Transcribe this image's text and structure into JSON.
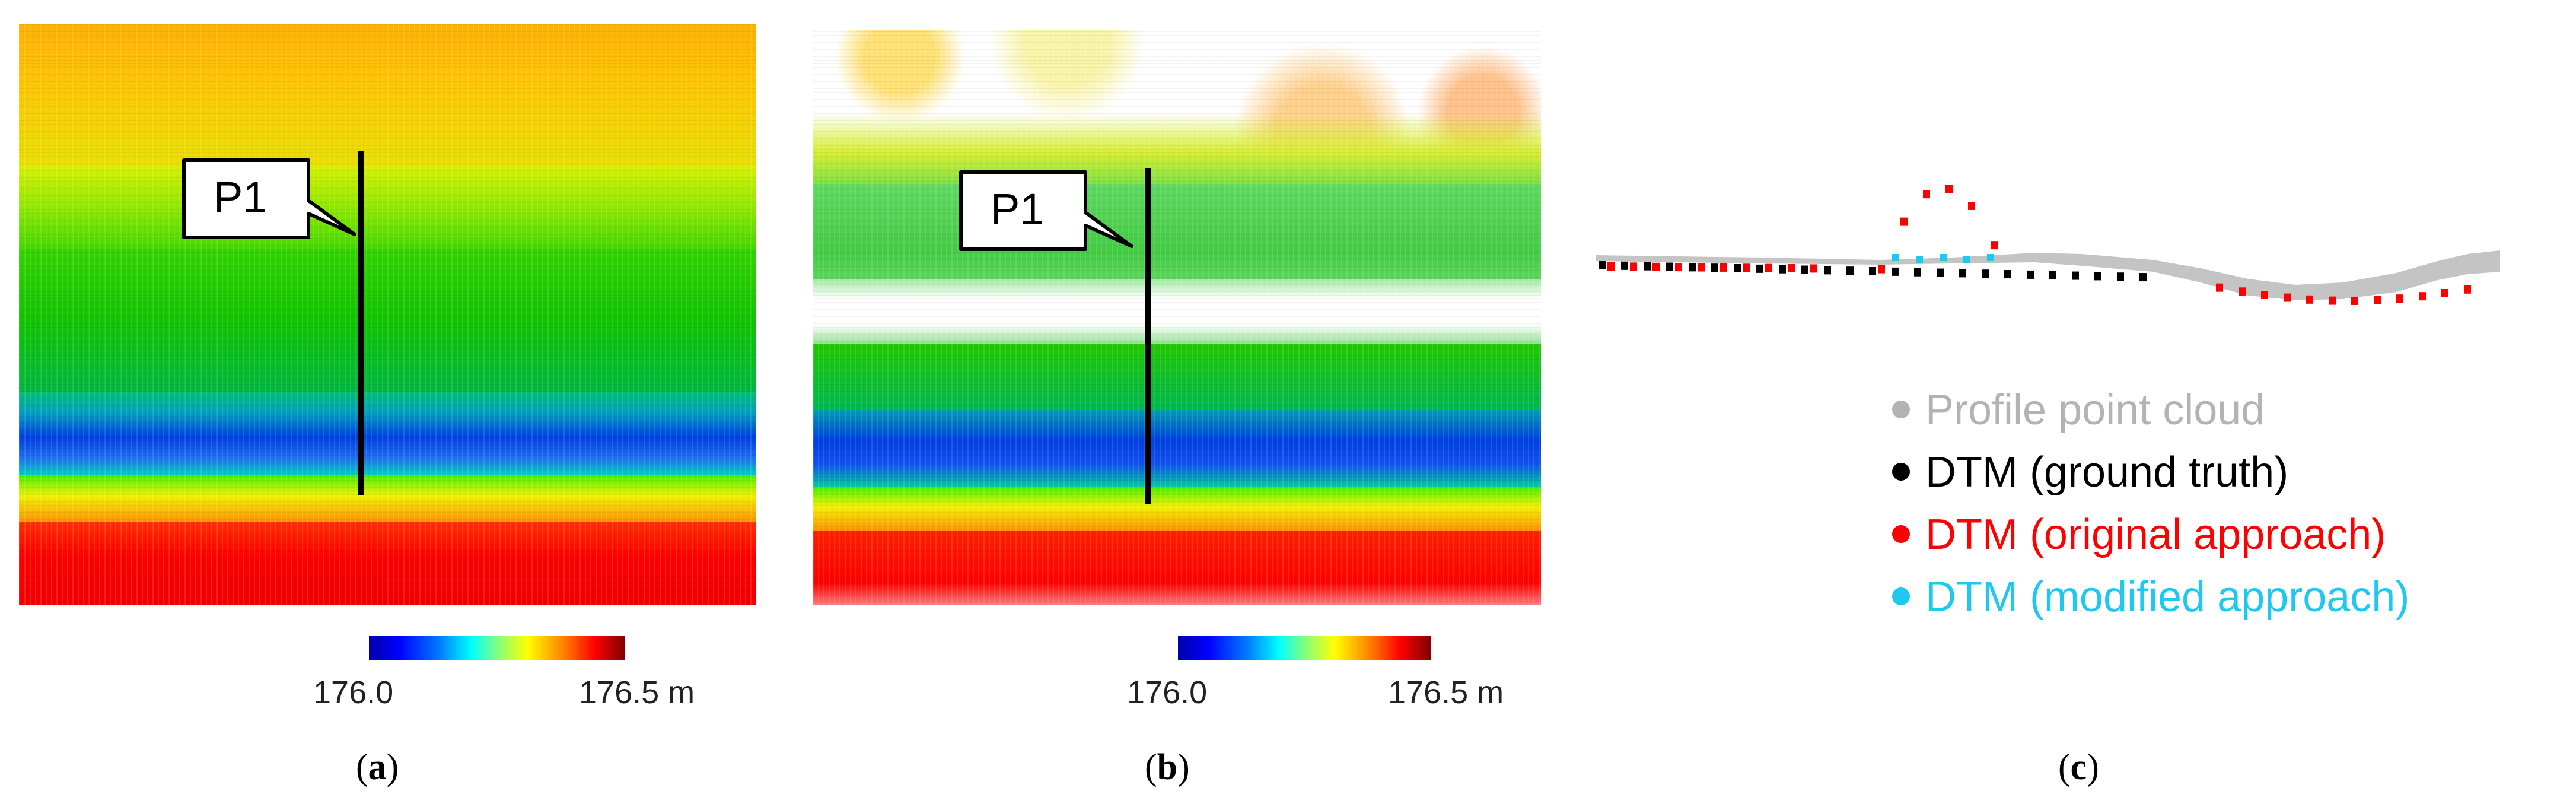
{
  "panels": {
    "a": {
      "callout": "P1",
      "colorbar": {
        "min_label": "176.0",
        "max_label": "176.5 m"
      },
      "label": {
        "open": "(",
        "letter": "a",
        "close": ")"
      }
    },
    "b": {
      "callout": "P1",
      "colorbar": {
        "min_label": "176.0",
        "max_label": "176.5 m"
      },
      "label": {
        "open": "(",
        "letter": "b",
        "close": ")"
      }
    },
    "c": {
      "label": {
        "open": "(",
        "letter": "c",
        "close": ")"
      },
      "legend": [
        {
          "text": "Profile point cloud",
          "color": "#b3b3b3"
        },
        {
          "text": "DTM (ground truth)",
          "color": "#000000"
        },
        {
          "text": "DTM (original approach)",
          "color": "#ff0000"
        },
        {
          "text": "DTM (modified approach)",
          "color": "#1ec8f0"
        }
      ]
    }
  },
  "colors": {
    "profile": "#c0c0c0",
    "ground_truth": "#000000",
    "original": "#ff0000",
    "modified": "#1ec8f0"
  }
}
